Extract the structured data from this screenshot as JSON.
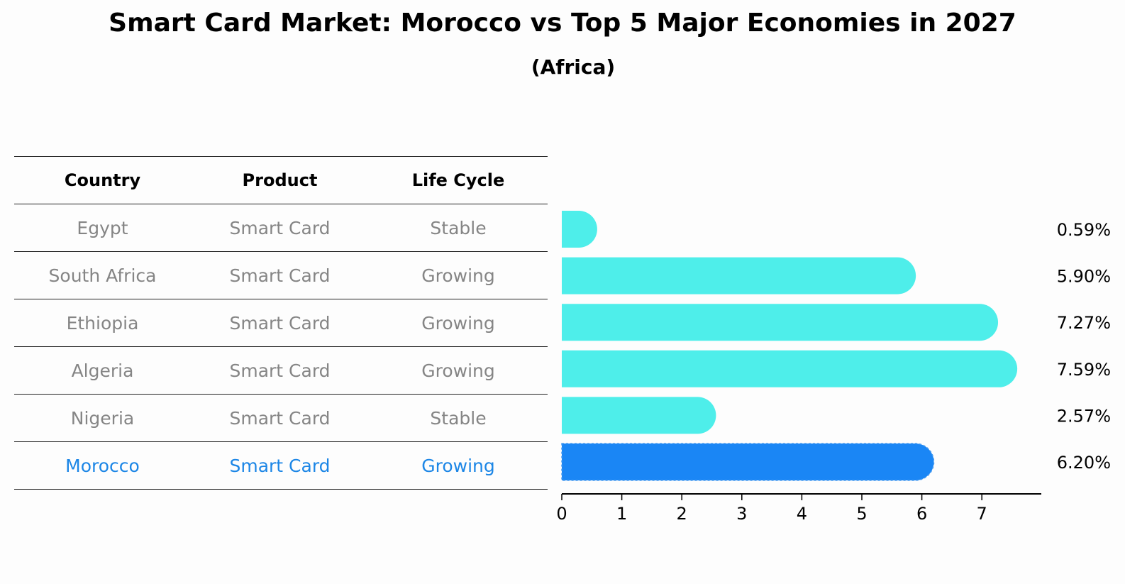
{
  "title": "Smart Card Market: Morocco vs Top 5 Major Economies in 2027",
  "subtitle": "(Africa)",
  "table": {
    "headers": [
      "Country",
      "Product",
      "Life Cycle"
    ],
    "rows": [
      [
        "Egypt",
        "Smart Card",
        "Stable"
      ],
      [
        "South Africa",
        "Smart Card",
        "Growing"
      ],
      [
        "Ethiopia",
        "Smart Card",
        "Growing"
      ],
      [
        "Algeria",
        "Smart Card",
        "Growing"
      ],
      [
        "Nigeria",
        "Smart Card",
        "Stable"
      ],
      [
        "Morocco",
        "Smart Card",
        "Growing"
      ]
    ]
  },
  "chart_data": {
    "type": "bar",
    "orientation": "horizontal",
    "categories": [
      "Egypt",
      "South Africa",
      "Ethiopia",
      "Algeria",
      "Nigeria",
      "Morocco"
    ],
    "values": [
      0.59,
      5.9,
      7.27,
      7.59,
      2.57,
      6.2
    ],
    "value_labels": [
      "0.59%",
      "5.90%",
      "7.27%",
      "7.59%",
      "2.57%",
      "6.20%"
    ],
    "xticks": [
      "0",
      "1",
      "2",
      "3",
      "4",
      "5",
      "6",
      "7"
    ],
    "xlim": [
      0,
      7.95
    ],
    "highlight": "Morocco",
    "colors": {
      "default": "#4eeeea",
      "highlight": "#1a86f5"
    }
  }
}
